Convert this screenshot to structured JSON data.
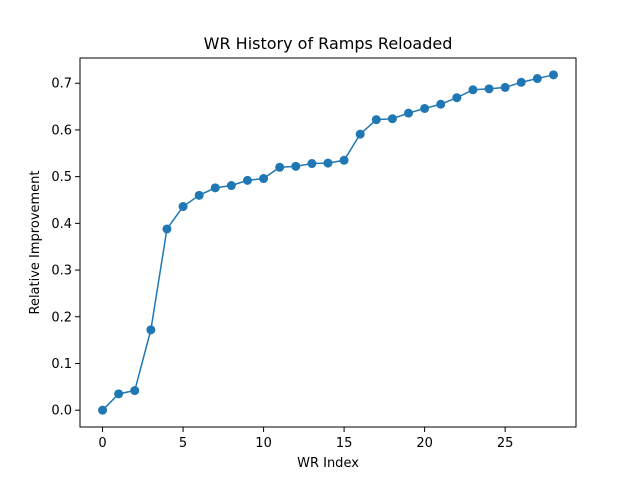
{
  "chart_data": {
    "type": "line",
    "title": "WR History of Ramps Reloaded",
    "xlabel": "WR Index",
    "ylabel": "Relative Improvement",
    "xlim": [
      -1.4,
      29.4
    ],
    "ylim": [
      -0.036,
      0.754
    ],
    "xticks": [
      0,
      5,
      10,
      15,
      20,
      25
    ],
    "yticks": [
      0.0,
      0.1,
      0.2,
      0.3,
      0.4,
      0.5,
      0.6,
      0.7
    ],
    "xtick_labels": [
      "0",
      "5",
      "10",
      "15",
      "20",
      "25"
    ],
    "ytick_labels": [
      "0.0",
      "0.1",
      "0.2",
      "0.3",
      "0.4",
      "0.5",
      "0.6",
      "0.7"
    ],
    "grid": false,
    "marker": "circle",
    "series": [
      {
        "color": "#1f77b4",
        "x": [
          0,
          1,
          2,
          3,
          4,
          5,
          6,
          7,
          8,
          9,
          10,
          11,
          12,
          13,
          14,
          15,
          16,
          17,
          18,
          19,
          20,
          21,
          22,
          23,
          24,
          25,
          26,
          27,
          28
        ],
        "y": [
          0.0,
          0.035,
          0.042,
          0.172,
          0.388,
          0.436,
          0.46,
          0.476,
          0.481,
          0.492,
          0.496,
          0.52,
          0.522,
          0.528,
          0.529,
          0.535,
          0.591,
          0.622,
          0.624,
          0.636,
          0.646,
          0.655,
          0.669,
          0.686,
          0.688,
          0.691,
          0.702,
          0.71,
          0.718
        ]
      }
    ]
  }
}
